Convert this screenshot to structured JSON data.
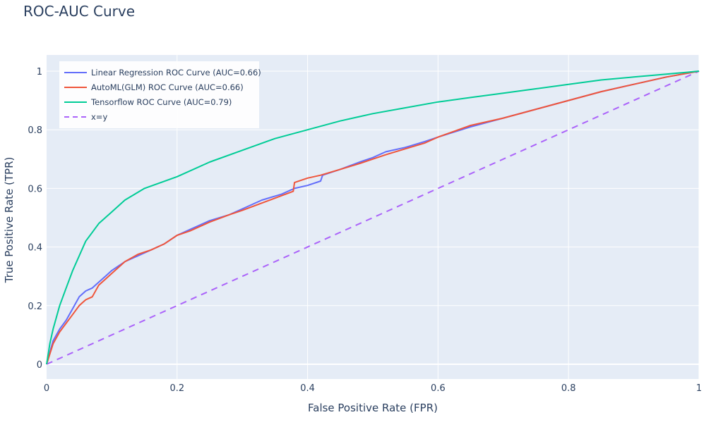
{
  "chart_data": {
    "type": "line",
    "title": "ROC-AUC Curve",
    "xlabel": "False Positive Rate (FPR)",
    "ylabel": "True Positive Rate (TPR)",
    "xlim": [
      0,
      1
    ],
    "ylim": [
      -0.05,
      1.06
    ],
    "xticks": [
      0,
      0.2,
      0.4,
      0.6,
      0.8,
      1
    ],
    "xtick_labels": [
      "0",
      "0.2",
      "0.4",
      "0.6",
      "0.8",
      "1"
    ],
    "yticks": [
      0,
      0.2,
      0.4,
      0.6,
      0.8,
      1
    ],
    "ytick_labels": [
      "0",
      "0.2",
      "0.4",
      "0.6",
      "0.8",
      "1"
    ],
    "grid": true,
    "legend_position": "top-left",
    "colors": {
      "plot_bg": "#e5ecf6",
      "grid": "#ffffff",
      "text": "#2a3f5f"
    },
    "series": [
      {
        "name": "Linear Regression ROC Curve (AUC=0.66)",
        "color": "#636efa",
        "dash": "solid",
        "x": [
          0,
          0.005,
          0.01,
          0.02,
          0.03,
          0.04,
          0.05,
          0.06,
          0.07,
          0.08,
          0.09,
          0.1,
          0.12,
          0.14,
          0.16,
          0.18,
          0.2,
          0.22,
          0.25,
          0.28,
          0.3,
          0.33,
          0.36,
          0.38,
          0.4,
          0.42,
          0.423,
          0.45,
          0.48,
          0.5,
          0.52,
          0.55,
          0.58,
          0.6,
          0.65,
          0.7,
          0.75,
          0.8,
          0.85,
          0.9,
          0.95,
          1
        ],
        "y": [
          0,
          0.04,
          0.08,
          0.12,
          0.15,
          0.19,
          0.23,
          0.25,
          0.26,
          0.28,
          0.3,
          0.32,
          0.35,
          0.37,
          0.39,
          0.41,
          0.44,
          0.46,
          0.49,
          0.51,
          0.53,
          0.56,
          0.58,
          0.6,
          0.61,
          0.625,
          0.645,
          0.665,
          0.69,
          0.705,
          0.725,
          0.74,
          0.76,
          0.775,
          0.81,
          0.84,
          0.87,
          0.9,
          0.93,
          0.955,
          0.98,
          1
        ]
      },
      {
        "name": "AutoML(GLM) ROC Curve (AUC=0.66)",
        "color": "#ef553b",
        "dash": "solid",
        "x": [
          0,
          0.01,
          0.02,
          0.03,
          0.04,
          0.05,
          0.06,
          0.07,
          0.08,
          0.09,
          0.1,
          0.12,
          0.14,
          0.16,
          0.18,
          0.2,
          0.22,
          0.25,
          0.28,
          0.3,
          0.33,
          0.36,
          0.378,
          0.38,
          0.4,
          0.42,
          0.45,
          0.48,
          0.5,
          0.52,
          0.55,
          0.58,
          0.6,
          0.65,
          0.7,
          0.75,
          0.8,
          0.85,
          0.9,
          0.95,
          1
        ],
        "y": [
          0,
          0.07,
          0.11,
          0.14,
          0.17,
          0.2,
          0.22,
          0.23,
          0.27,
          0.29,
          0.31,
          0.35,
          0.375,
          0.39,
          0.41,
          0.44,
          0.455,
          0.485,
          0.51,
          0.525,
          0.55,
          0.575,
          0.59,
          0.62,
          0.635,
          0.645,
          0.665,
          0.685,
          0.7,
          0.715,
          0.735,
          0.755,
          0.775,
          0.815,
          0.84,
          0.87,
          0.9,
          0.93,
          0.955,
          0.98,
          1
        ]
      },
      {
        "name": "Tensorflow ROC Curve (AUC=0.79)",
        "color": "#00cc96",
        "dash": "solid",
        "x": [
          0,
          0.005,
          0.01,
          0.02,
          0.03,
          0.04,
          0.05,
          0.06,
          0.07,
          0.08,
          0.1,
          0.12,
          0.15,
          0.2,
          0.25,
          0.3,
          0.35,
          0.4,
          0.45,
          0.5,
          0.55,
          0.6,
          0.65,
          0.7,
          0.75,
          0.8,
          0.85,
          0.9,
          0.95,
          1
        ],
        "y": [
          0,
          0.07,
          0.12,
          0.2,
          0.26,
          0.32,
          0.37,
          0.42,
          0.45,
          0.48,
          0.52,
          0.56,
          0.6,
          0.64,
          0.69,
          0.73,
          0.77,
          0.8,
          0.83,
          0.855,
          0.875,
          0.895,
          0.91,
          0.925,
          0.94,
          0.955,
          0.97,
          0.98,
          0.99,
          1
        ]
      },
      {
        "name": "x=y",
        "color": "#ab63fa",
        "dash": "dash",
        "x": [
          0,
          1
        ],
        "y": [
          0,
          1
        ]
      }
    ]
  }
}
